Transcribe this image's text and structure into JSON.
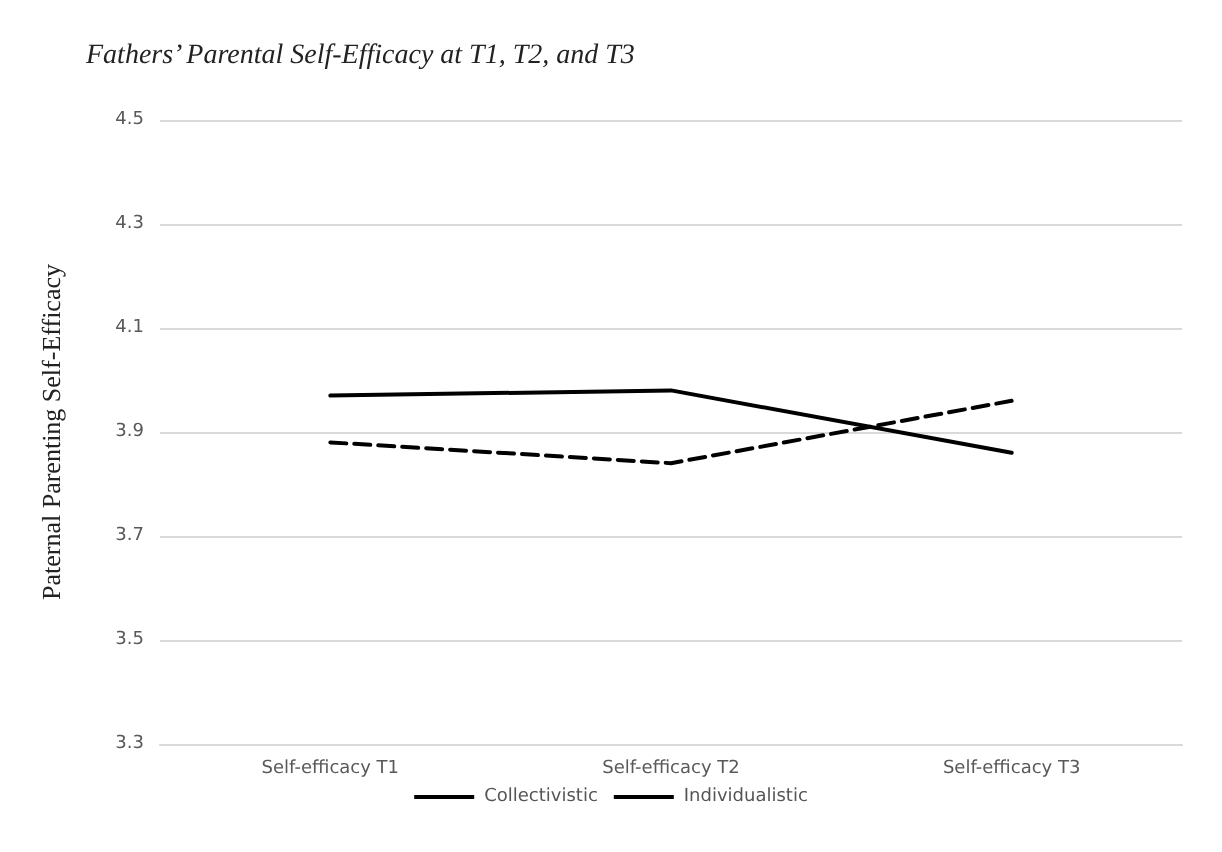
{
  "chart_data": {
    "type": "line",
    "title": "Fathers’ Parental Self-Efficacy at T1, T2, and T3",
    "ylabel": "Paternal Parenting Self-Efficacy",
    "categories": [
      "Self-efficacy T1",
      "Self-efficacy T2",
      "Self-efficacy T3"
    ],
    "series": [
      {
        "name": "Collectivistic",
        "color": "#000000",
        "line_style": "dashed",
        "values": [
          3.88,
          3.84,
          3.96
        ]
      },
      {
        "name": "Individualistic",
        "color": "#000000",
        "line_style": "solid",
        "values": [
          3.97,
          3.98,
          3.86
        ]
      }
    ],
    "ylim": [
      3.3,
      4.5
    ],
    "yticks": [
      3.3,
      3.5,
      3.7,
      3.9,
      4.1,
      4.3,
      4.5
    ],
    "grid": "y",
    "legend": "bottom",
    "marker": "none"
  }
}
